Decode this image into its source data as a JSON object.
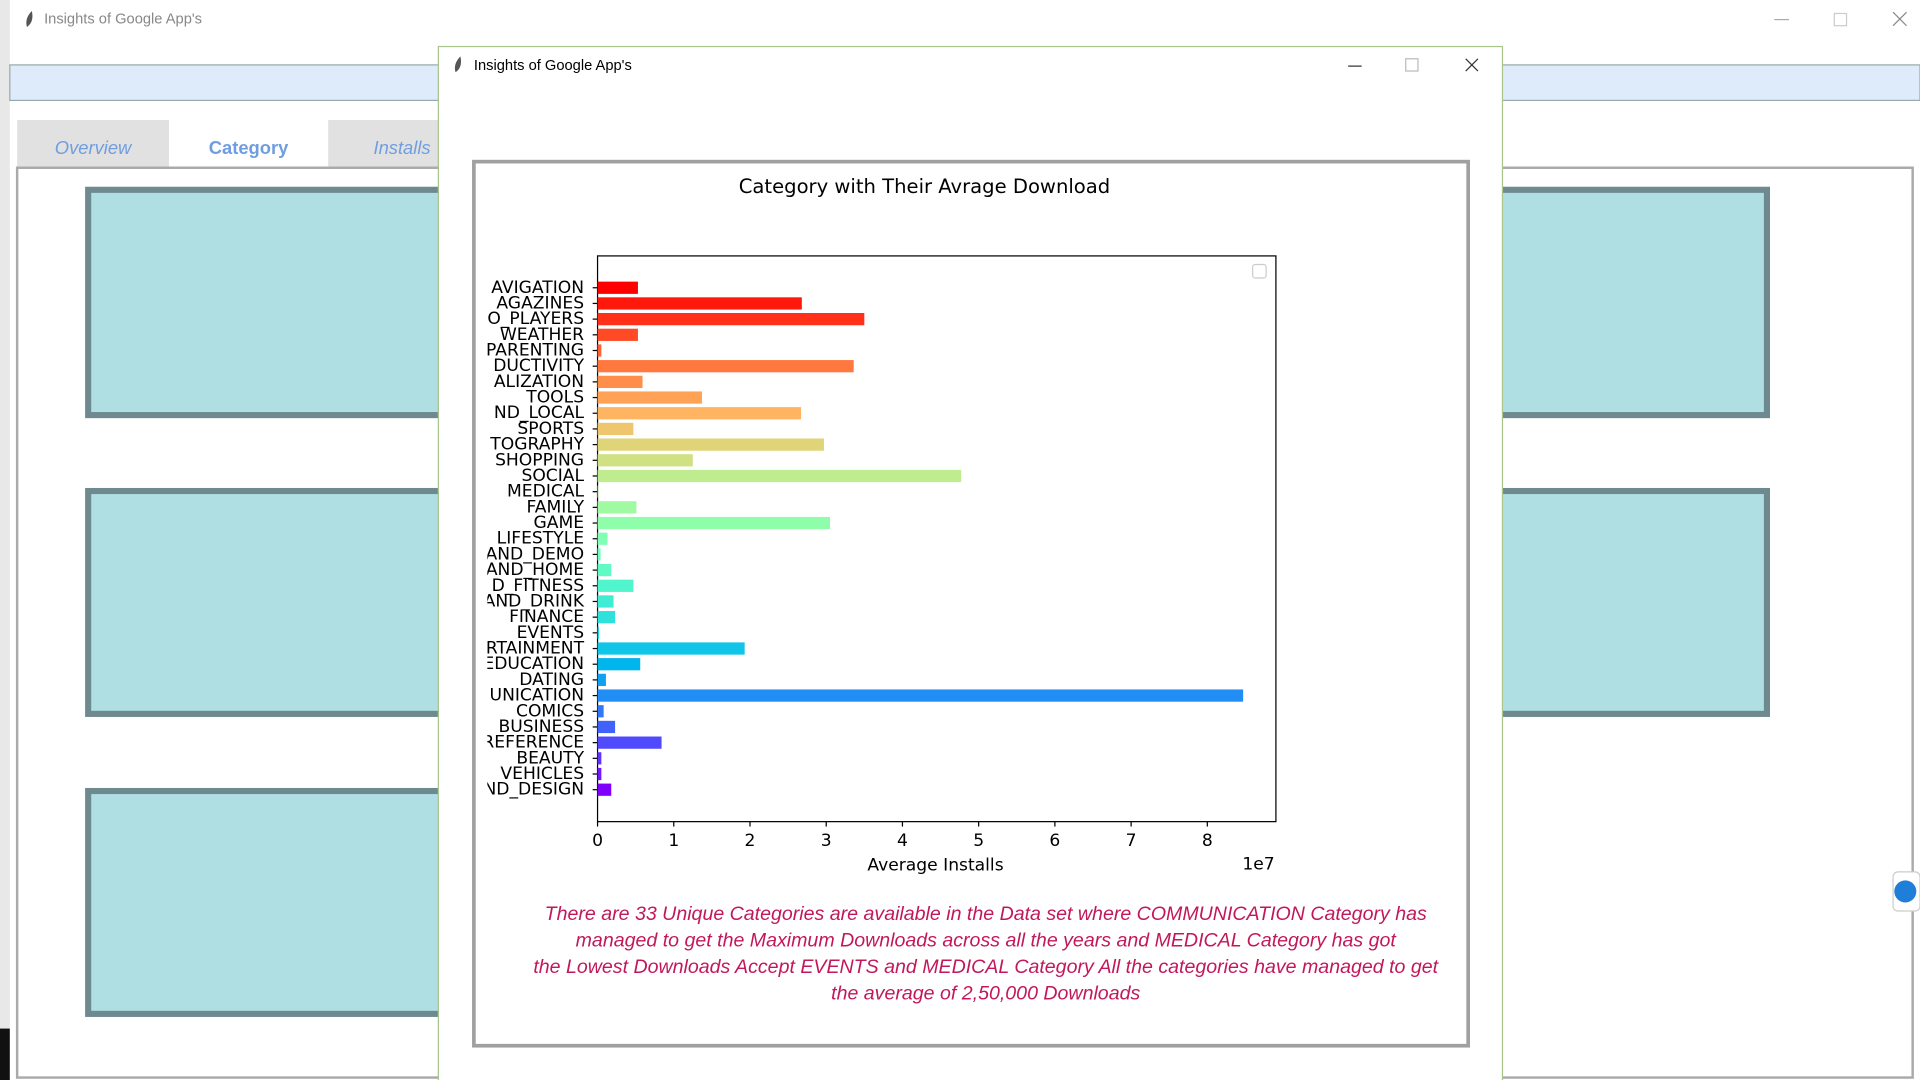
{
  "main_window": {
    "title": "Insights of Google App's"
  },
  "tabs": [
    "Overview",
    "Category",
    "Installs"
  ],
  "dialog": {
    "title": "Insights of Google App's"
  },
  "chart_data": {
    "type": "barh",
    "title": "Category with Their Avrage Download",
    "xlabel": "Average Installs",
    "x_offset_label": "1e7",
    "colormap": "rainbow",
    "categories": [
      "AVIGATION",
      "AGAZINES",
      "O_PLAYERS",
      "WEATHER",
      "PARENTING",
      "DUCTIVITY",
      "ALIZATION",
      "TOOLS",
      "ND_LOCAL",
      "SPORTS",
      "TOGRAPHY",
      "SHOPPING",
      "SOCIAL",
      "MEDICAL",
      "FAMILY",
      "GAME",
      "LIFESTYLE",
      "AND_DEMO",
      "AND_HOME",
      "D_FITNESS",
      "AND_DRINK",
      "FINANCE",
      "EVENTS",
      "RTAINMENT",
      "EDUCATION",
      "DATING",
      "UNICATION",
      "COMICS",
      "BUSINESS",
      "REFERENCE",
      "BEAUTY",
      "VEHICLES",
      "ND_DESIGN"
    ],
    "values": [
      5300000,
      26800000,
      35000000,
      5300000,
      500000,
      33600000,
      5900000,
      13700000,
      26700000,
      4700000,
      29700000,
      12500000,
      47700000,
      100000,
      5100000,
      30500000,
      1300000,
      400000,
      1800000,
      4700000,
      2100000,
      2300000,
      200000,
      19300000,
      5600000,
      1100000,
      84700000,
      800000,
      2300000,
      8400000,
      500000,
      500000,
      1800000
    ],
    "xlim": [
      0,
      89000000
    ],
    "xticks": [
      0,
      {
        "value": 10000000,
        "label": "1"
      },
      {
        "value": 20000000,
        "label": "2"
      },
      {
        "value": 30000000,
        "label": "3"
      },
      {
        "value": 40000000,
        "label": "4"
      },
      {
        "value": 50000000,
        "label": "5"
      },
      {
        "value": 60000000,
        "label": "6"
      },
      {
        "value": 70000000,
        "label": "7"
      },
      {
        "value": 80000000,
        "label": "8"
      }
    ],
    "grid": false,
    "annotation": [
      "There are 33 Unique Categories are available in the Data set where COMMUNICATION Category has",
      "managed to get the Maximum Downloads across all the years and MEDICAL Category has got",
      "the Lowest Downloads Accept EVENTS and MEDICAL Category All the categories have managed to get",
      "the average of 2,50,000 Downloads"
    ]
  }
}
